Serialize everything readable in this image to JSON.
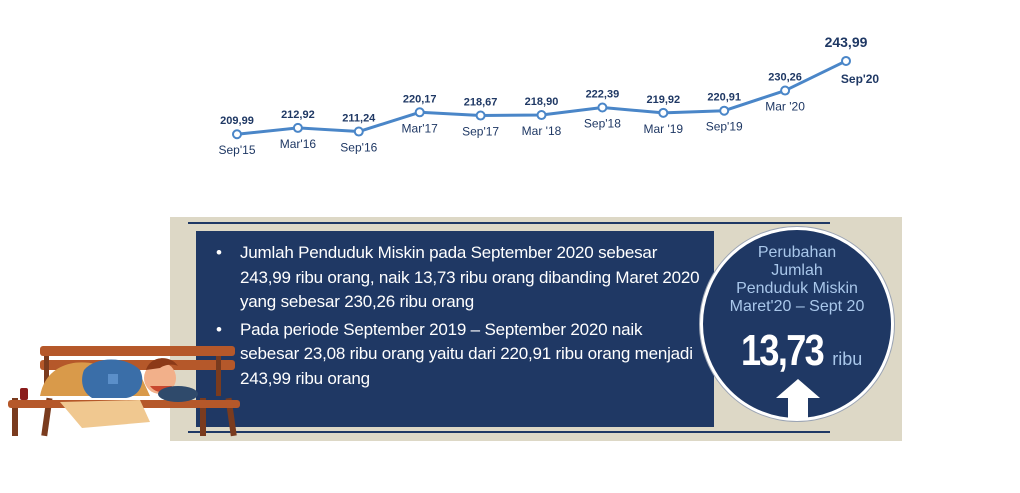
{
  "chart_data": {
    "type": "line",
    "categories": [
      "Sep'15",
      "Mar'16",
      "Sep'16",
      "Mar'17",
      "Sep'17",
      "Mar '18",
      "Sep'18",
      "Mar '19",
      "Sep'19",
      "Mar '20",
      "Sep'20"
    ],
    "values": [
      209.99,
      212.92,
      211.24,
      220.17,
      218.67,
      218.9,
      222.39,
      219.92,
      220.91,
      230.26,
      243.99
    ],
    "value_labels": [
      "209,99",
      "212,92",
      "211,24",
      "220,17",
      "218,67",
      "218,90",
      "222,39",
      "219,92",
      "220,91",
      "230,26",
      "243,99"
    ],
    "line_color": "#4a86c8",
    "label_color": "#1f3864",
    "grid": false,
    "legend": "none"
  },
  "info": {
    "bullets": [
      "Jumlah Penduduk Miskin pada September 2020 sebesar  243,99 ribu orang, naik 13,73 ribu orang dibanding Maret 2020 yang sebesar  230,26 ribu orang",
      "Pada periode September 2019 – September 2020 naik sebesar 23,08 ribu orang yaitu dari 220,91 ribu orang menjadi 243,99 ribu orang"
    ],
    "bullet_char": "•"
  },
  "change_badge": {
    "title_lines": [
      "Perubahan",
      "Jumlah",
      "Penduduk Miskin",
      "Maret'20 – Sept 20"
    ],
    "value": "13,73",
    "unit": "ribu",
    "direction_icon": "arrow-up-icon"
  },
  "colors": {
    "navy": "#1f3864",
    "panel": "#ddd8c6",
    "circle_text": "#a9c7ea"
  }
}
